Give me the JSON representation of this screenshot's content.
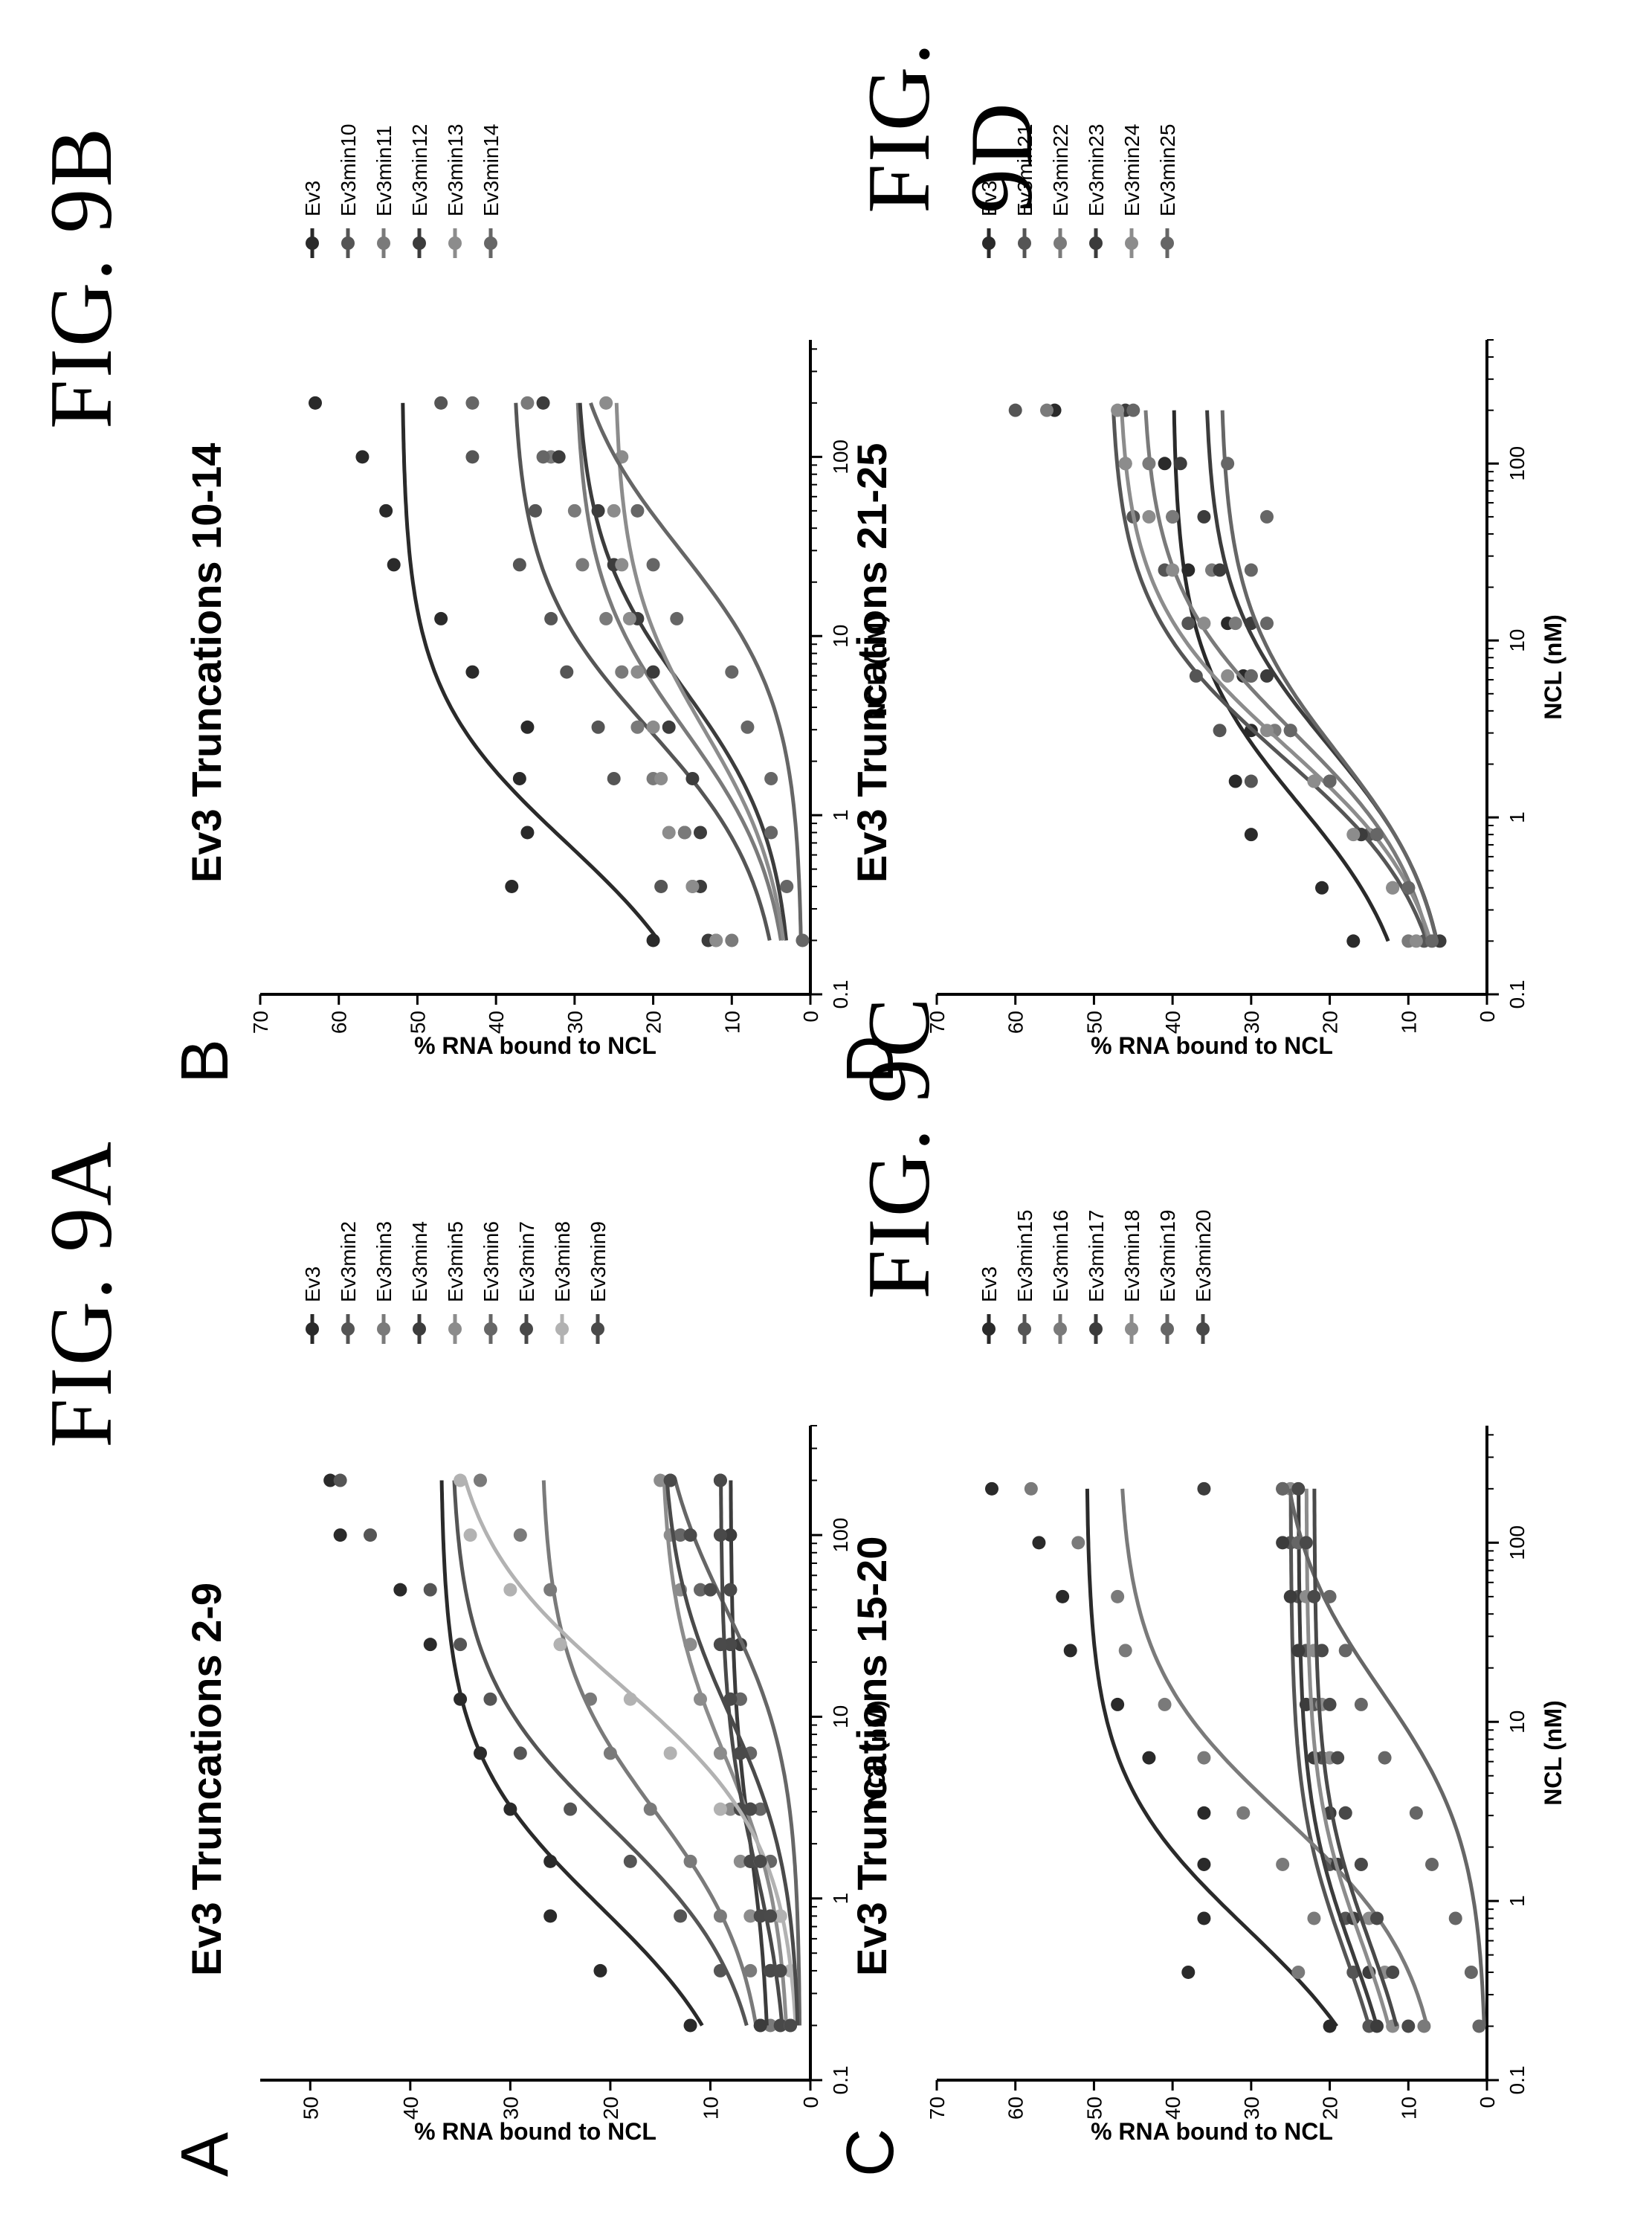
{
  "figure_labels": [
    "FIG. 9A",
    "FIG. 9B",
    "FIG. 9C",
    "FIG. 9D"
  ],
  "panel_letters": [
    "A",
    "B",
    "C",
    "D"
  ],
  "colors": {
    "Ev3": "#2a2a2a",
    "palette": [
      "#555555",
      "#7a7a7a",
      "#3c3c3c",
      "#8c8c8c",
      "#666666",
      "#494949",
      "#b2b2b2",
      "#4a4a4a"
    ]
  },
  "chart_data": [
    {
      "type": "scatter",
      "title": "Ev3 Truncations 2-9",
      "xlabel": "NCL (nM)",
      "ylabel": "% RNA bound to NCL",
      "xscale": "log",
      "xlim": [
        0.1,
        400
      ],
      "ylim": [
        0,
        55
      ],
      "xticks": [
        0.1,
        1,
        10,
        100
      ],
      "xtick_labels": [
        "0.1",
        "1",
        "10",
        "100"
      ],
      "yticks": [
        0,
        10,
        20,
        30,
        40,
        50
      ],
      "ytick_labels": [
        "0",
        "10",
        "20",
        "30",
        "40",
        "50"
      ],
      "legend_position": "right",
      "series": [
        {
          "name": "Ev3",
          "x": [
            0.2,
            0.4,
            0.8,
            1.6,
            3.1,
            6.3,
            12.5,
            25,
            50,
            100,
            200
          ],
          "y": [
            12,
            21,
            26,
            26,
            30,
            33,
            35,
            38,
            41,
            47,
            48
          ],
          "fit": {
            "bottom": 5,
            "top": 37,
            "ec50": 0.9
          }
        },
        {
          "name": "Ev3min2",
          "x": [
            0.2,
            0.4,
            0.8,
            1.6,
            3.1,
            6.3,
            12.5,
            25,
            50,
            100,
            200
          ],
          "y": [
            5,
            9,
            13,
            18,
            24,
            29,
            32,
            35,
            38,
            44,
            47
          ],
          "fit": {
            "bottom": 4,
            "top": 36,
            "ec50": 2.5
          }
        },
        {
          "name": "Ev3min3",
          "x": [
            0.2,
            0.4,
            0.8,
            1.6,
            3.1,
            6.3,
            12.5,
            25,
            50,
            100,
            200
          ],
          "y": [
            4,
            6,
            9,
            12,
            16,
            20,
            22,
            25,
            26,
            29,
            33
          ],
          "fit": {
            "bottom": 4,
            "top": 27,
            "ec50": 3
          }
        },
        {
          "name": "Ev3min4",
          "x": [
            0.2,
            0.4,
            0.8,
            1.6,
            3.1,
            6.3,
            12.5,
            25,
            50,
            100,
            200
          ],
          "y": [
            5,
            4,
            5,
            6,
            6,
            7,
            7,
            7,
            8,
            8,
            9
          ],
          "fit": {
            "bottom": 4,
            "top": 8,
            "ec50": 2
          }
        },
        {
          "name": "Ev3min5",
          "x": [
            0.2,
            0.4,
            0.8,
            1.6,
            3.1,
            6.3,
            12.5,
            25,
            50,
            100,
            200
          ],
          "y": [
            3,
            4,
            6,
            7,
            8,
            9,
            11,
            12,
            13,
            14,
            15
          ],
          "fit": {
            "bottom": 2,
            "top": 15,
            "ec50": 6
          }
        },
        {
          "name": "Ev3min6",
          "x": [
            0.2,
            0.4,
            0.8,
            1.6,
            3.1,
            6.3,
            12.5,
            25,
            50,
            100,
            200
          ],
          "y": [
            2,
            3,
            3,
            4,
            5,
            6,
            7,
            9,
            11,
            13,
            14
          ],
          "fit": {
            "bottom": 1,
            "top": 16,
            "ec50": 40
          }
        },
        {
          "name": "Ev3min7",
          "x": [
            0.2,
            0.4,
            0.8,
            1.6,
            3.1,
            6.3,
            12.5,
            25,
            50,
            100,
            200
          ],
          "y": [
            3,
            4,
            5,
            6,
            7,
            7,
            8,
            8,
            8,
            9,
            9
          ],
          "fit": {
            "bottom": 2,
            "top": 9,
            "ec50": 1.5
          }
        },
        {
          "name": "Ev3min8",
          "x": [
            0.2,
            0.4,
            0.8,
            1.6,
            3.1,
            6.3,
            12.5,
            25,
            50,
            100,
            200
          ],
          "y": [
            2,
            2,
            3,
            5,
            9,
            14,
            18,
            25,
            30,
            34,
            35
          ],
          "fit": {
            "bottom": 1,
            "top": 37,
            "ec50": 15
          }
        },
        {
          "name": "Ev3min9",
          "x": [
            0.2,
            0.4,
            0.8,
            1.6,
            3.1,
            6.3,
            12.5,
            25,
            50,
            100,
            200
          ],
          "y": [
            2,
            3,
            4,
            5,
            6,
            7,
            8,
            9,
            10,
            12,
            14
          ],
          "fit": {
            "bottom": 1,
            "top": 15,
            "ec50": 10
          }
        }
      ]
    },
    {
      "type": "scatter",
      "title": "Ev3 Truncations 10-14",
      "xlabel": "NCL (nM)",
      "ylabel": "% RNA bound to NCL",
      "xscale": "log",
      "xlim": [
        0.1,
        450
      ],
      "ylim": [
        0,
        70
      ],
      "xticks": [
        0.1,
        1,
        10,
        100
      ],
      "xtick_labels": [
        "0.1",
        "1",
        "10",
        "100"
      ],
      "yticks": [
        0,
        10,
        20,
        30,
        40,
        50,
        60,
        70
      ],
      "ytick_labels": [
        "0",
        "10",
        "20",
        "30",
        "40",
        "50",
        "60",
        "70"
      ],
      "legend_position": "right",
      "series": [
        {
          "name": "Ev3",
          "x": [
            0.2,
            0.4,
            0.8,
            1.6,
            3.1,
            6.3,
            12.5,
            25,
            50,
            100,
            200
          ],
          "y": [
            20,
            38,
            36,
            37,
            36,
            43,
            47,
            53,
            54,
            57,
            63
          ],
          "fit": {
            "bottom": 10,
            "top": 52,
            "ec50": 0.7
          }
        },
        {
          "name": "Ev3min10",
          "x": [
            0.2,
            0.4,
            0.8,
            1.6,
            3.1,
            6.3,
            12.5,
            25,
            50,
            100,
            200
          ],
          "y": [
            12,
            19,
            16,
            25,
            27,
            31,
            33,
            37,
            35,
            43,
            47
          ],
          "fit": {
            "bottom": 3,
            "top": 38,
            "ec50": 3
          }
        },
        {
          "name": "Ev3min11",
          "x": [
            0.2,
            0.4,
            0.8,
            1.6,
            3.1,
            6.3,
            12.5,
            25,
            50,
            100,
            200
          ],
          "y": [
            10,
            15,
            16,
            20,
            22,
            24,
            26,
            29,
            30,
            33,
            36
          ],
          "fit": {
            "bottom": 2,
            "top": 30,
            "ec50": 3
          }
        },
        {
          "name": "Ev3min12",
          "x": [
            0.2,
            0.4,
            0.8,
            1.6,
            3.1,
            6.3,
            12.5,
            25,
            50,
            100,
            200
          ],
          "y": [
            13,
            14,
            14,
            15,
            18,
            20,
            22,
            25,
            27,
            32,
            34
          ],
          "fit": {
            "bottom": 2,
            "top": 30,
            "ec50": 5
          }
        },
        {
          "name": "Ev3min13",
          "x": [
            0.2,
            0.4,
            0.8,
            1.6,
            3.1,
            6.3,
            12.5,
            25,
            50,
            100,
            200
          ],
          "y": [
            12,
            15,
            18,
            19,
            20,
            22,
            23,
            24,
            25,
            24,
            26
          ],
          "fit": {
            "bottom": 2,
            "top": 25,
            "ec50": 3
          }
        },
        {
          "name": "Ev3min14",
          "x": [
            0.2,
            0.4,
            0.8,
            1.6,
            3.1,
            6.3,
            12.5,
            25,
            50,
            100,
            200
          ],
          "y": [
            1,
            3,
            5,
            5,
            8,
            10,
            17,
            20,
            22,
            34,
            43
          ],
          "fit": {
            "bottom": 1,
            "top": 32,
            "ec50": 30
          }
        }
      ]
    },
    {
      "type": "scatter",
      "title": "Ev3 Truncations 15-20",
      "xlabel": "NCL (nM)",
      "ylabel": "% RNA bound to NCL",
      "xscale": "log",
      "xlim": [
        0.1,
        450
      ],
      "ylim": [
        0,
        70
      ],
      "xticks": [
        0.1,
        1,
        10,
        100
      ],
      "xtick_labels": [
        "0.1",
        "1",
        "10",
        "100"
      ],
      "yticks": [
        0,
        10,
        20,
        30,
        40,
        50,
        60,
        70
      ],
      "ytick_labels": [
        "0",
        "10",
        "20",
        "30",
        "40",
        "50",
        "60",
        "70"
      ],
      "legend_position": "right",
      "series": [
        {
          "name": "Ev3",
          "x": [
            0.2,
            0.4,
            0.8,
            1.6,
            3.1,
            6.3,
            12.5,
            25,
            50,
            100,
            200
          ],
          "y": [
            20,
            38,
            36,
            36,
            36,
            43,
            47,
            53,
            54,
            57,
            63
          ],
          "fit": {
            "bottom": 10,
            "top": 51,
            "ec50": 0.7
          }
        },
        {
          "name": "Ev3min15",
          "x": [
            0.2,
            0.4,
            0.8,
            1.6,
            3.1,
            6.3,
            12.5,
            25,
            50,
            100,
            200
          ],
          "y": [
            15,
            17,
            18,
            20,
            20,
            21,
            22,
            23,
            24,
            25,
            26
          ],
          "fit": {
            "bottom": 11,
            "top": 25,
            "ec50": 0.5
          }
        },
        {
          "name": "Ev3min16",
          "x": [
            0.2,
            0.4,
            0.8,
            1.6,
            3.1,
            6.3,
            12.5,
            25,
            50,
            100,
            200
          ],
          "y": [
            8,
            24,
            22,
            26,
            31,
            36,
            41,
            46,
            47,
            52,
            58
          ],
          "fit": {
            "bottom": 5,
            "top": 47,
            "ec50": 3
          }
        },
        {
          "name": "Ev3min17",
          "x": [
            0.2,
            0.4,
            0.8,
            1.6,
            3.1,
            6.3,
            12.5,
            25,
            50,
            100,
            200
          ],
          "y": [
            14,
            15,
            17,
            19,
            20,
            22,
            23,
            24,
            25,
            26,
            36
          ],
          "fit": {
            "bottom": 10,
            "top": 24,
            "ec50": 0.5
          }
        },
        {
          "name": "Ev3min18",
          "x": [
            0.2,
            0.4,
            0.8,
            1.6,
            3.1,
            6.3,
            12.5,
            25,
            50,
            100,
            200
          ],
          "y": [
            12,
            13,
            15,
            16,
            18,
            20,
            21,
            22,
            23,
            24,
            25
          ],
          "fit": {
            "bottom": 9,
            "top": 23,
            "ec50": 0.6
          }
        },
        {
          "name": "Ev3min19",
          "x": [
            0.2,
            0.4,
            0.8,
            1.6,
            3.1,
            6.3,
            12.5,
            25,
            50,
            100,
            200
          ],
          "y": [
            1,
            2,
            4,
            7,
            9,
            13,
            16,
            18,
            20,
            24,
            26
          ],
          "fit": {
            "bottom": 0,
            "top": 27,
            "ec50": 15
          }
        },
        {
          "name": "Ev3min20",
          "x": [
            0.2,
            0.4,
            0.8,
            1.6,
            3.1,
            6.3,
            12.5,
            25,
            50,
            100,
            200
          ],
          "y": [
            10,
            12,
            14,
            16,
            18,
            19,
            20,
            21,
            22,
            23,
            24
          ],
          "fit": {
            "bottom": 8,
            "top": 22,
            "ec50": 0.6
          }
        }
      ]
    },
    {
      "type": "scatter",
      "title": "Ev3 Truncations 21-25",
      "xlabel": "NCL (nM)",
      "ylabel": "% RNA bound to NCL",
      "xscale": "log",
      "xlim": [
        0.1,
        500
      ],
      "ylim": [
        0,
        70
      ],
      "xticks": [
        0.1,
        1,
        10,
        100
      ],
      "xtick_labels": [
        "0.1",
        "1",
        "10",
        "100"
      ],
      "yticks": [
        0,
        10,
        20,
        30,
        40,
        50,
        60,
        70
      ],
      "ytick_labels": [
        "0",
        "10",
        "20",
        "30",
        "40",
        "50",
        "60",
        "70"
      ],
      "legend_position": "right",
      "series": [
        {
          "name": "Ev3",
          "x": [
            0.2,
            0.4,
            0.8,
            1.6,
            3.1,
            6.3,
            12.5,
            25,
            50,
            100,
            200
          ],
          "y": [
            17,
            21,
            30,
            32,
            30,
            31,
            33,
            38,
            40,
            41,
            55
          ],
          "fit": {
            "bottom": 8,
            "top": 40,
            "ec50": 1.2
          }
        },
        {
          "name": "Ev3min21",
          "x": [
            0.2,
            0.4,
            0.8,
            1.6,
            3.1,
            6.3,
            12.5,
            25,
            50,
            100,
            200
          ],
          "y": [
            8,
            10,
            15,
            30,
            34,
            37,
            38,
            41,
            45,
            46,
            60
          ],
          "fit": {
            "bottom": 4,
            "top": 48,
            "ec50": 2.2
          }
        },
        {
          "name": "Ev3min22",
          "x": [
            0.2,
            0.4,
            0.8,
            1.6,
            3.1,
            6.3,
            12.5,
            25,
            50,
            100,
            200
          ],
          "y": [
            10,
            12,
            16,
            22,
            27,
            30,
            32,
            35,
            40,
            43,
            56
          ],
          "fit": {
            "bottom": 5,
            "top": 44,
            "ec50": 3
          }
        },
        {
          "name": "Ev3min23",
          "x": [
            0.2,
            0.4,
            0.8,
            1.6,
            3.1,
            6.3,
            12.5,
            25,
            50,
            100,
            200
          ],
          "y": [
            6,
            10,
            16,
            20,
            25,
            28,
            30,
            34,
            36,
            39,
            46
          ],
          "fit": {
            "bottom": 4,
            "top": 36,
            "ec50": 2.5
          }
        },
        {
          "name": "Ev3min24",
          "x": [
            0.2,
            0.4,
            0.8,
            1.6,
            3.1,
            6.3,
            12.5,
            25,
            50,
            100,
            200
          ],
          "y": [
            9,
            12,
            17,
            22,
            28,
            33,
            36,
            40,
            43,
            46,
            47
          ],
          "fit": {
            "bottom": 4,
            "top": 47,
            "ec50": 2.5
          }
        },
        {
          "name": "Ev3min25",
          "x": [
            0.2,
            0.4,
            0.8,
            1.6,
            3.1,
            6.3,
            12.5,
            25,
            50,
            100,
            200
          ],
          "y": [
            7,
            10,
            14,
            20,
            25,
            30,
            28,
            30,
            28,
            33,
            45
          ],
          "fit": {
            "bottom": 4,
            "top": 34,
            "ec50": 2.3
          }
        }
      ]
    }
  ]
}
